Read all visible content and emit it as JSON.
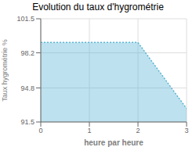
{
  "chart_data": {
    "type": "area",
    "title": "Evolution du taux d'hygrométrie",
    "xlabel": "heure par heure",
    "ylabel": "Taux hygrométrie %",
    "x": [
      0,
      2,
      3
    ],
    "values": [
      99.2,
      99.2,
      92.8
    ],
    "color": "#5bb5d5",
    "line_style": "dotted",
    "xlim": [
      0,
      3
    ],
    "ylim": [
      91.5,
      101.5
    ],
    "xticks": [
      0,
      1,
      2,
      3
    ],
    "yticks": [
      91.5,
      94.8,
      98.2,
      101.5
    ],
    "grid": true
  }
}
